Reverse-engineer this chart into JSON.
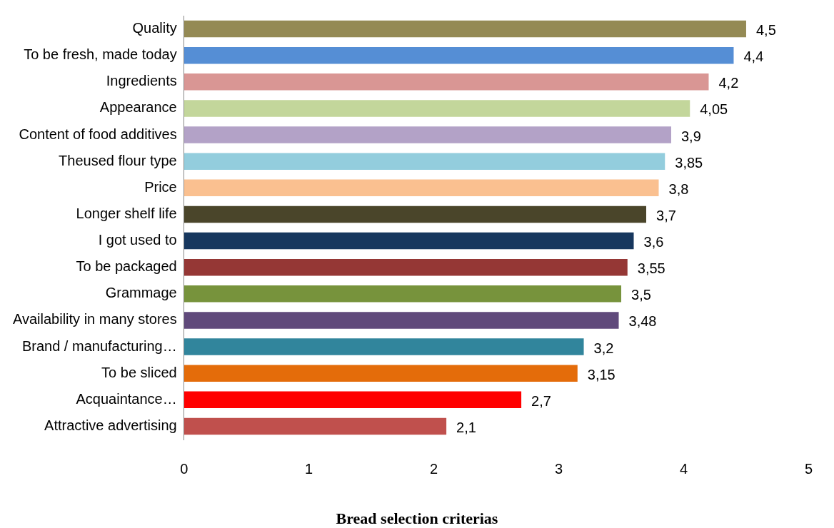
{
  "chart_data": {
    "type": "bar",
    "orientation": "horizontal",
    "xlabel": "Bread selection criterias",
    "categories": [
      "Quality",
      "To be fresh, made today",
      "Ingredients",
      "Appearance",
      "Content of food additives",
      "Theused flour type",
      "Price",
      "Longer shelf life",
      "I got used to",
      "To be packaged",
      "Grammage",
      "Availability in many stores",
      "Brand / manufacturing…",
      "To be sliced",
      "Acquaintance…",
      "Attractive advertising"
    ],
    "values": [
      4.5,
      4.4,
      4.2,
      4.05,
      3.9,
      3.85,
      3.8,
      3.7,
      3.6,
      3.55,
      3.5,
      3.48,
      3.2,
      3.15,
      2.7,
      2.1
    ],
    "value_labels": [
      "4,5",
      "4,4",
      "4,2",
      "4,05",
      "3,9",
      "3,85",
      "3,8",
      "3,7",
      "3,6",
      "3,55",
      "3,5",
      "3,48",
      "3,2",
      "3,15",
      "2,7",
      "2,1"
    ],
    "colors": [
      "#948a54",
      "#558ed5",
      "#d99694",
      "#c3d69b",
      "#b3a2c7",
      "#93cddd",
      "#fac090",
      "#4a452a",
      "#17375e",
      "#953735",
      "#77933c",
      "#604a7b",
      "#31859c",
      "#e46c0a",
      "#ff0000",
      "#c0504d"
    ],
    "xlim": [
      0,
      5
    ],
    "xticks": [
      0,
      1,
      2,
      3,
      4,
      5
    ],
    "grid": false,
    "legend": false
  }
}
